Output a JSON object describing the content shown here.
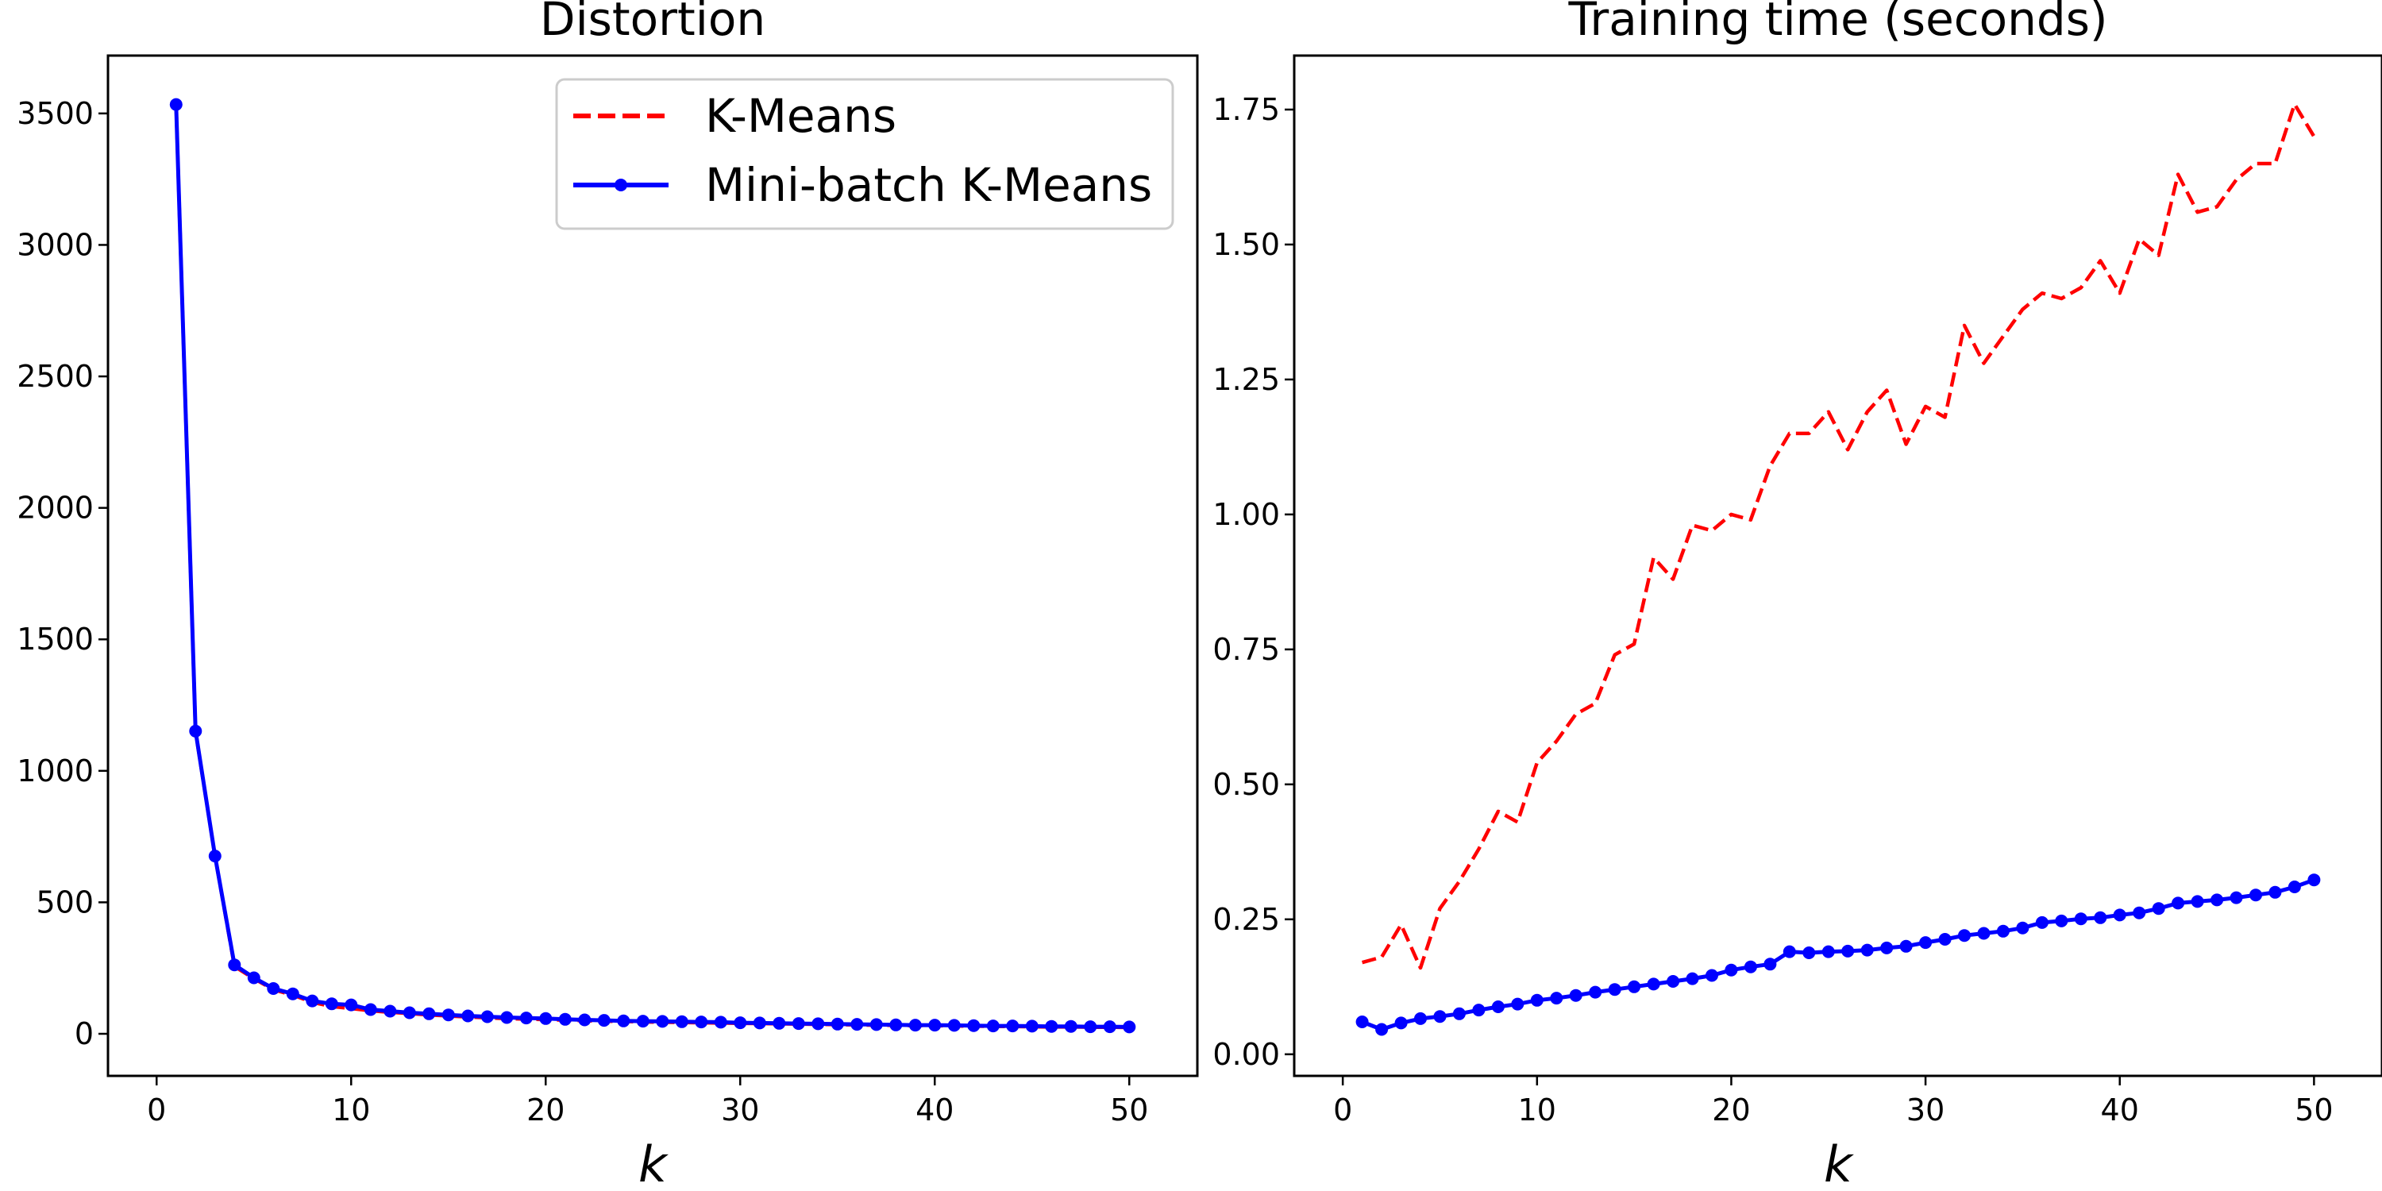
{
  "chart_data": [
    {
      "type": "line",
      "title": "Distortion",
      "xlabel": "k",
      "ylabel": "",
      "xlim": [
        -2.5,
        53.5
      ],
      "ylim": [
        -160,
        3720
      ],
      "xticks": [
        0,
        10,
        20,
        30,
        40,
        50
      ],
      "yticks": [
        0,
        500,
        1000,
        1500,
        2000,
        2500,
        3000,
        3500
      ],
      "grid": false,
      "legend": {
        "position": "top-right"
      },
      "series": [
        {
          "name": "K-Means",
          "style": "dashed",
          "color": "#ff0000",
          "marker": false,
          "x": [
            1,
            2,
            3,
            4,
            5,
            6,
            7,
            8,
            9,
            10,
            11,
            12,
            13,
            14,
            15,
            16,
            17,
            18,
            19,
            20,
            21,
            22,
            23,
            24,
            25,
            26,
            27,
            28,
            29,
            30,
            31,
            32,
            33,
            34,
            35,
            36,
            37,
            38,
            39,
            40,
            41,
            42,
            43,
            44,
            45,
            46,
            47,
            48,
            49,
            50
          ],
          "y": [
            3534,
            1149,
            676,
            256,
            210,
            168,
            147,
            120,
            104,
            96,
            88,
            82,
            77,
            72,
            68,
            64,
            61,
            58,
            56,
            54,
            52,
            50,
            48,
            47,
            45,
            44,
            43,
            42,
            41,
            40,
            39,
            38,
            37,
            36,
            35,
            34,
            33,
            32,
            31,
            31,
            30,
            29,
            28,
            28,
            27,
            26,
            26,
            25,
            25,
            24
          ]
        },
        {
          "name": "Mini-batch K-Means",
          "style": "solid",
          "color": "#0000ff",
          "marker": true,
          "x": [
            1,
            2,
            3,
            4,
            5,
            6,
            7,
            8,
            9,
            10,
            11,
            12,
            13,
            14,
            15,
            16,
            17,
            18,
            19,
            20,
            21,
            22,
            23,
            24,
            25,
            26,
            27,
            28,
            29,
            30,
            31,
            32,
            33,
            34,
            35,
            36,
            37,
            38,
            39,
            40,
            41,
            42,
            43,
            44,
            45,
            46,
            47,
            48,
            49,
            50
          ],
          "y": [
            3534,
            1151,
            676,
            262,
            213,
            172,
            152,
            125,
            114,
            110,
            92,
            86,
            80,
            76,
            72,
            68,
            65,
            62,
            60,
            58,
            55,
            53,
            51,
            49,
            48,
            47,
            46,
            45,
            44,
            42,
            41,
            40,
            39,
            38,
            37,
            36,
            35,
            34,
            33,
            33,
            32,
            31,
            30,
            30,
            29,
            28,
            28,
            27,
            27,
            26
          ]
        }
      ]
    },
    {
      "type": "line",
      "title": "Training time (seconds)",
      "xlabel": "k",
      "ylabel": "",
      "xlim": [
        -2.5,
        53.5
      ],
      "ylim": [
        -0.04,
        1.85
      ],
      "xticks": [
        0,
        10,
        20,
        30,
        40,
        50
      ],
      "yticks": [
        0.0,
        0.25,
        0.5,
        0.75,
        1.0,
        1.25,
        1.5,
        1.75
      ],
      "ytick_labels": [
        "0.00",
        "0.25",
        "0.50",
        "0.75",
        "1.00",
        "1.25",
        "1.50",
        "1.75"
      ],
      "grid": false,
      "series": [
        {
          "name": "K-Means",
          "style": "dashed",
          "color": "#ff0000",
          "marker": false,
          "x": [
            1,
            2,
            3,
            4,
            5,
            6,
            7,
            8,
            9,
            10,
            11,
            12,
            13,
            14,
            15,
            16,
            17,
            18,
            19,
            20,
            21,
            22,
            23,
            24,
            25,
            26,
            27,
            28,
            29,
            30,
            31,
            32,
            33,
            34,
            35,
            36,
            37,
            38,
            39,
            40,
            41,
            42,
            43,
            44,
            45,
            46,
            47,
            48,
            49,
            50
          ],
          "y": [
            0.17,
            0.18,
            0.24,
            0.16,
            0.27,
            0.32,
            0.38,
            0.45,
            0.43,
            0.54,
            0.58,
            0.63,
            0.65,
            0.74,
            0.76,
            0.92,
            0.88,
            0.98,
            0.97,
            1.0,
            0.99,
            1.09,
            1.15,
            1.15,
            1.19,
            1.12,
            1.19,
            1.23,
            1.13,
            1.2,
            1.18,
            1.35,
            1.28,
            1.33,
            1.38,
            1.41,
            1.4,
            1.42,
            1.47,
            1.41,
            1.51,
            1.48,
            1.63,
            1.56,
            1.57,
            1.62,
            1.65,
            1.65,
            1.76,
            1.7
          ]
        },
        {
          "name": "Mini-batch K-Means",
          "style": "solid",
          "color": "#0000ff",
          "marker": true,
          "x": [
            1,
            2,
            3,
            4,
            5,
            6,
            7,
            8,
            9,
            10,
            11,
            12,
            13,
            14,
            15,
            16,
            17,
            18,
            19,
            20,
            21,
            22,
            23,
            24,
            25,
            26,
            27,
            28,
            29,
            30,
            31,
            32,
            33,
            34,
            35,
            36,
            37,
            38,
            39,
            40,
            41,
            42,
            43,
            44,
            45,
            46,
            47,
            48,
            49,
            50
          ],
          "y": [
            0.06,
            0.046,
            0.058,
            0.066,
            0.07,
            0.075,
            0.082,
            0.088,
            0.093,
            0.1,
            0.104,
            0.109,
            0.115,
            0.12,
            0.125,
            0.13,
            0.135,
            0.14,
            0.146,
            0.156,
            0.162,
            0.167,
            0.19,
            0.188,
            0.19,
            0.191,
            0.193,
            0.197,
            0.2,
            0.207,
            0.213,
            0.22,
            0.224,
            0.228,
            0.234,
            0.244,
            0.247,
            0.251,
            0.253,
            0.258,
            0.262,
            0.27,
            0.28,
            0.283,
            0.286,
            0.29,
            0.295,
            0.3,
            0.31,
            0.323
          ]
        }
      ]
    }
  ]
}
